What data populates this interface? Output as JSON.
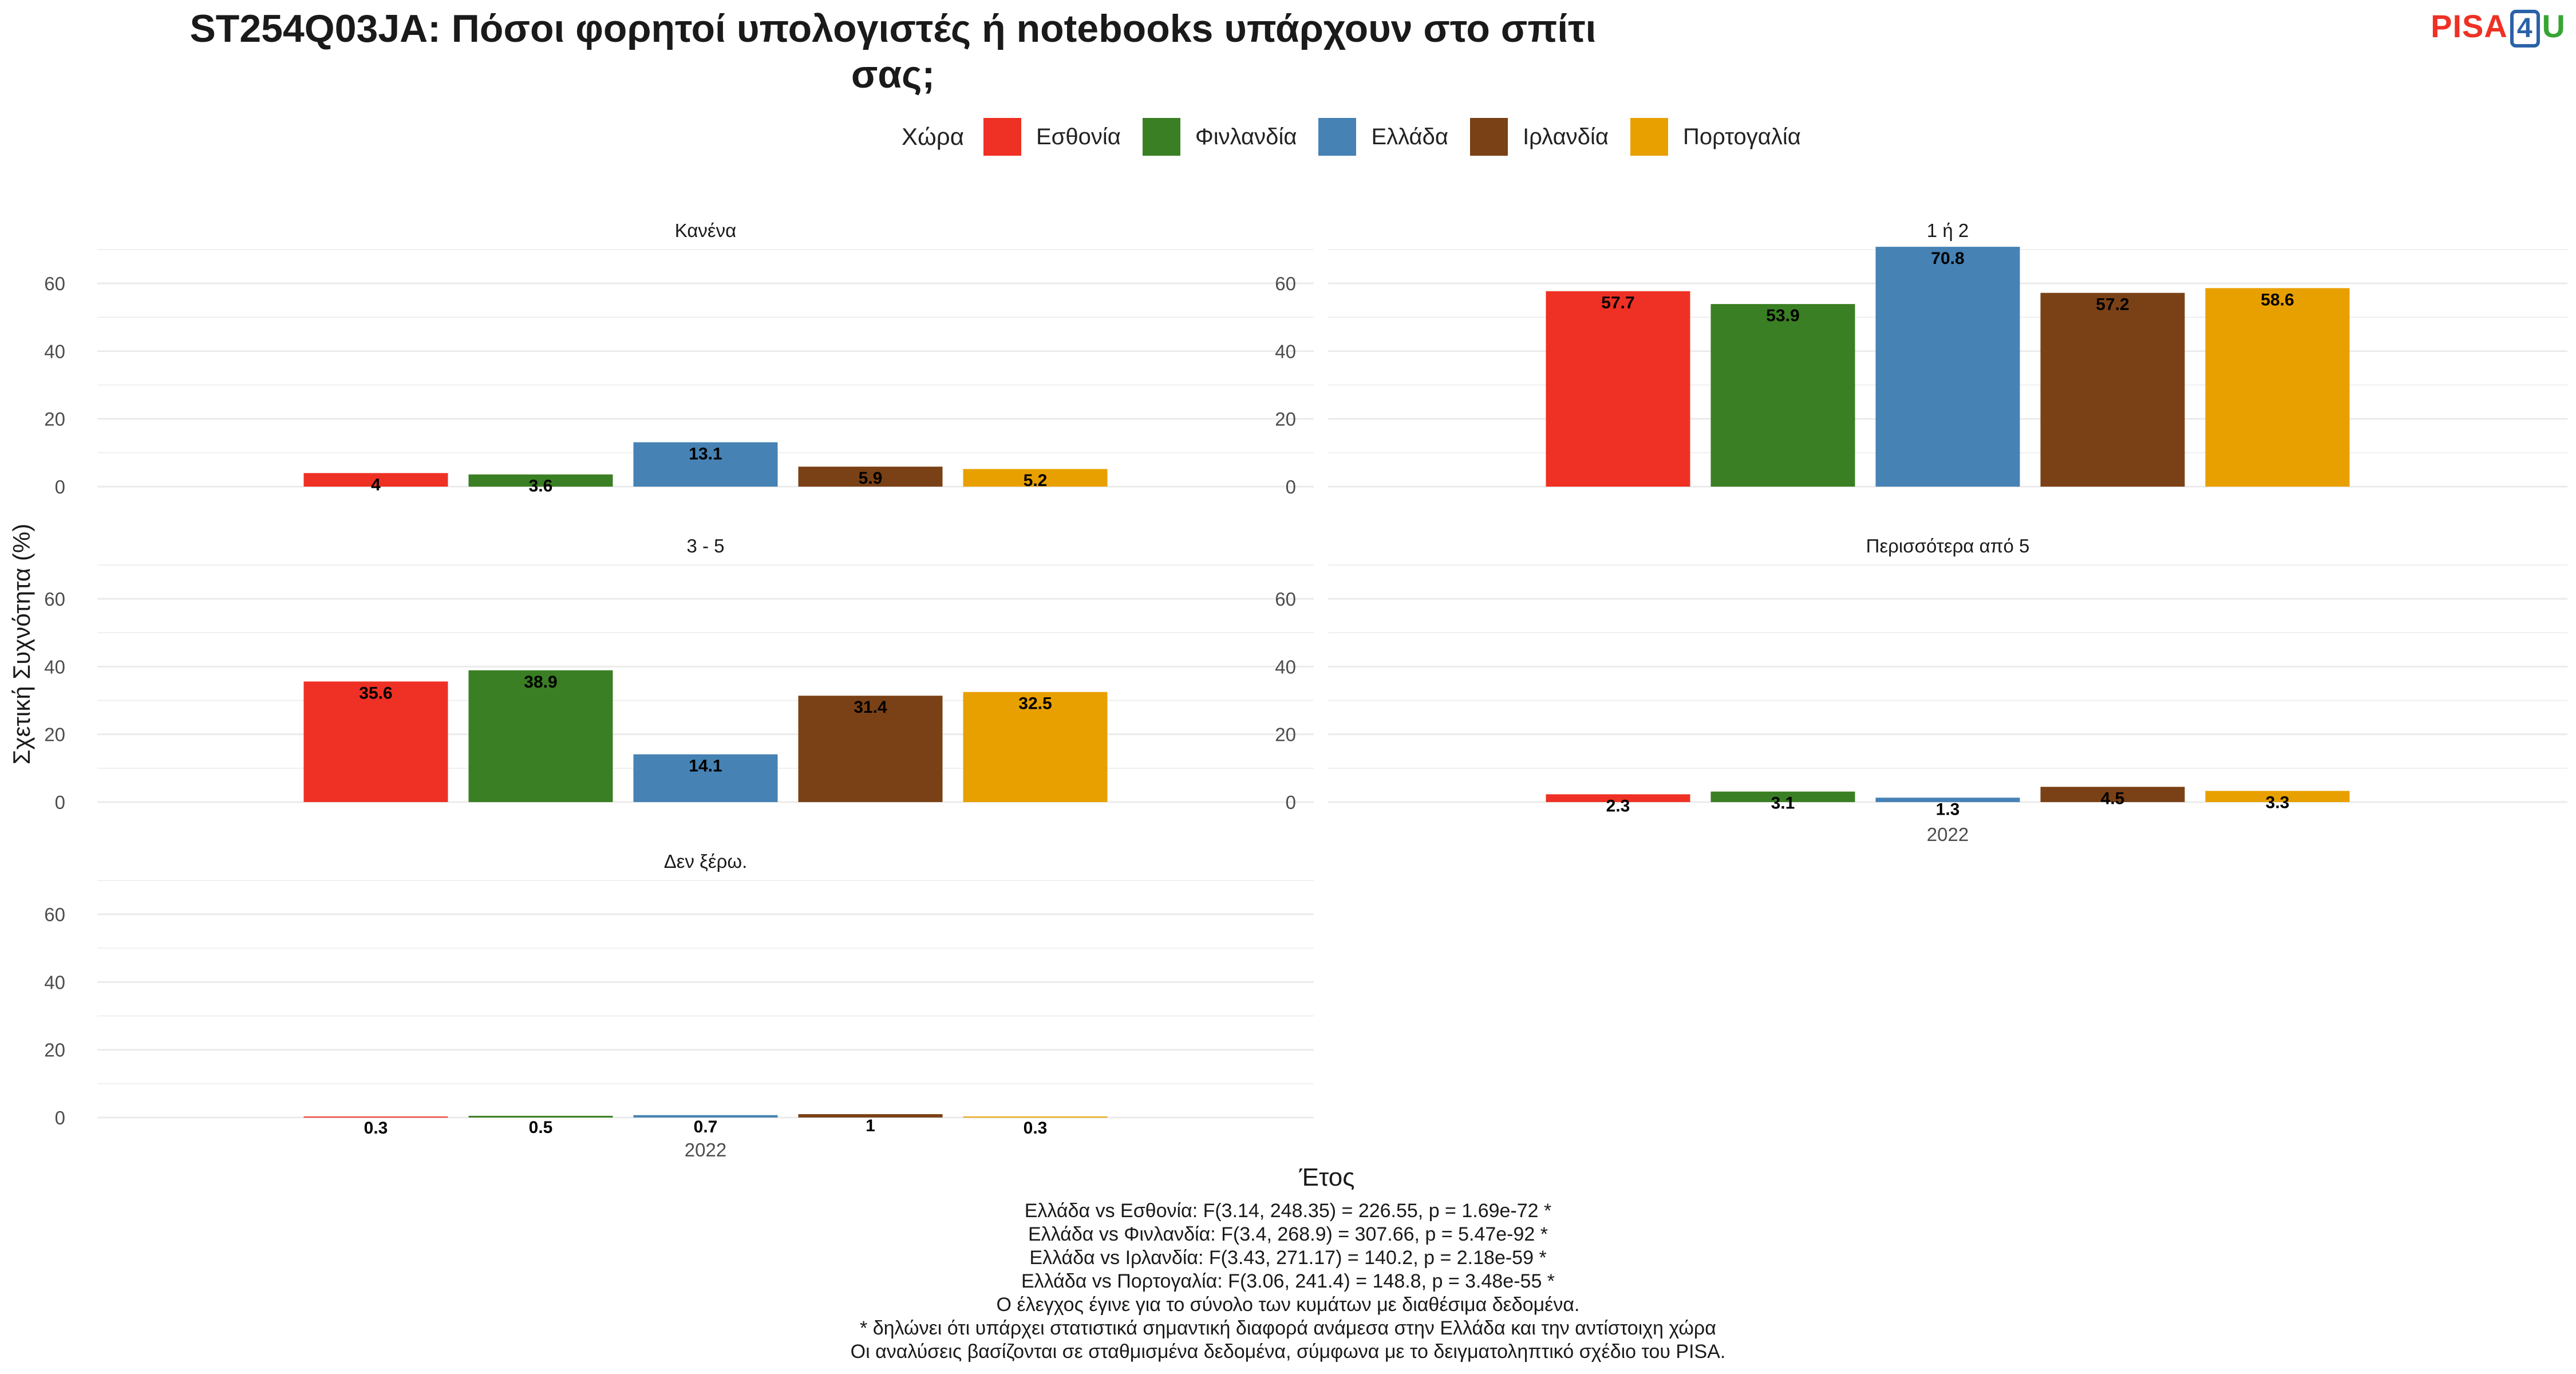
{
  "title_lines": [
    "ST254Q03JA: Πόσοι φορητοί υπολογιστές ή notebooks υπάρχουν στο σπίτι",
    "σας;"
  ],
  "logo": {
    "part1": "PISA",
    "part2": "4",
    "part3": "U"
  },
  "legend": {
    "title": "Χώρα",
    "items": [
      {
        "label": "Εσθονία",
        "color": "#EE3124"
      },
      {
        "label": "Φινλανδία",
        "color": "#3A7F23"
      },
      {
        "label": "Ελλάδα",
        "color": "#4682B4"
      },
      {
        "label": "Ιρλανδία",
        "color": "#7A4116"
      },
      {
        "label": "Πορτογαλία",
        "color": "#E8A000"
      }
    ]
  },
  "chart_data": {
    "type": "bar",
    "ylabel": "Σχετική Συχνότητα (%)",
    "xlabel": "Έτος",
    "category": "2022",
    "yticks": [
      0,
      20,
      40,
      60
    ],
    "ylim": [
      0,
      72
    ],
    "grid": true,
    "legend_position": "top",
    "series_names": [
      "Εσθονία",
      "Φινλανδία",
      "Ελλάδα",
      "Ιρλανδία",
      "Πορτογαλία"
    ],
    "colors": [
      "#EE3124",
      "#3A7F23",
      "#4682B4",
      "#7A4116",
      "#E8A000"
    ],
    "facets": [
      {
        "title": "Κανένα",
        "values": [
          4,
          3.6,
          13.1,
          5.9,
          5.2
        ],
        "labels": [
          "4",
          "3.6",
          "13.1",
          "5.9",
          "5.2"
        ],
        "show_x": false
      },
      {
        "title": "1 ή 2",
        "values": [
          57.7,
          53.9,
          70.8,
          57.2,
          58.6
        ],
        "labels": [
          "57.7",
          "53.9",
          "70.8",
          "57.2",
          "58.6"
        ],
        "show_x": false
      },
      {
        "title": "3 - 5",
        "values": [
          35.6,
          38.9,
          14.1,
          31.4,
          32.5
        ],
        "labels": [
          "35.6",
          "38.9",
          "14.1",
          "31.4",
          "32.5"
        ],
        "show_x": false
      },
      {
        "title": "Περισσότερα από 5",
        "values": [
          2.3,
          3.1,
          1.3,
          4.5,
          3.3
        ],
        "labels": [
          "2.3",
          "3.1",
          "1.3",
          "4.5",
          "3.3"
        ],
        "show_x": true
      },
      {
        "title": "Δεν ξέρω.",
        "values": [
          0.3,
          0.5,
          0.7,
          1,
          0.3
        ],
        "labels": [
          "0.3",
          "0.5",
          "0.7",
          "1",
          "0.3"
        ],
        "show_x": true
      }
    ]
  },
  "footer_lines": [
    "Ελλάδα vs Εσθονία: F(3.14, 248.35) = 226.55, p = 1.69e-72 *",
    "Ελλάδα vs Φινλανδία: F(3.4, 268.9) = 307.66, p = 5.47e-92 *",
    "Ελλάδα vs Ιρλανδία: F(3.43, 271.17) = 140.2, p = 2.18e-59 *",
    "Ελλάδα vs Πορτογαλία: F(3.06, 241.4) = 148.8, p = 3.48e-55 *",
    "Ο έλεγχος έγινε για το σύνολο των κυμάτων με διαθέσιμα δεδομένα.",
    "* δηλώνει ότι υπάρχει στατιστικά σημαντική διαφορά ανάμεσα στην Ελλάδα και την αντίστοιχη χώρα",
    "Οι αναλύσεις βασίζονται σε σταθμισμένα δεδομένα, σύμφωνα με το δειγματοληπτικό σχέδιο του PISA."
  ]
}
